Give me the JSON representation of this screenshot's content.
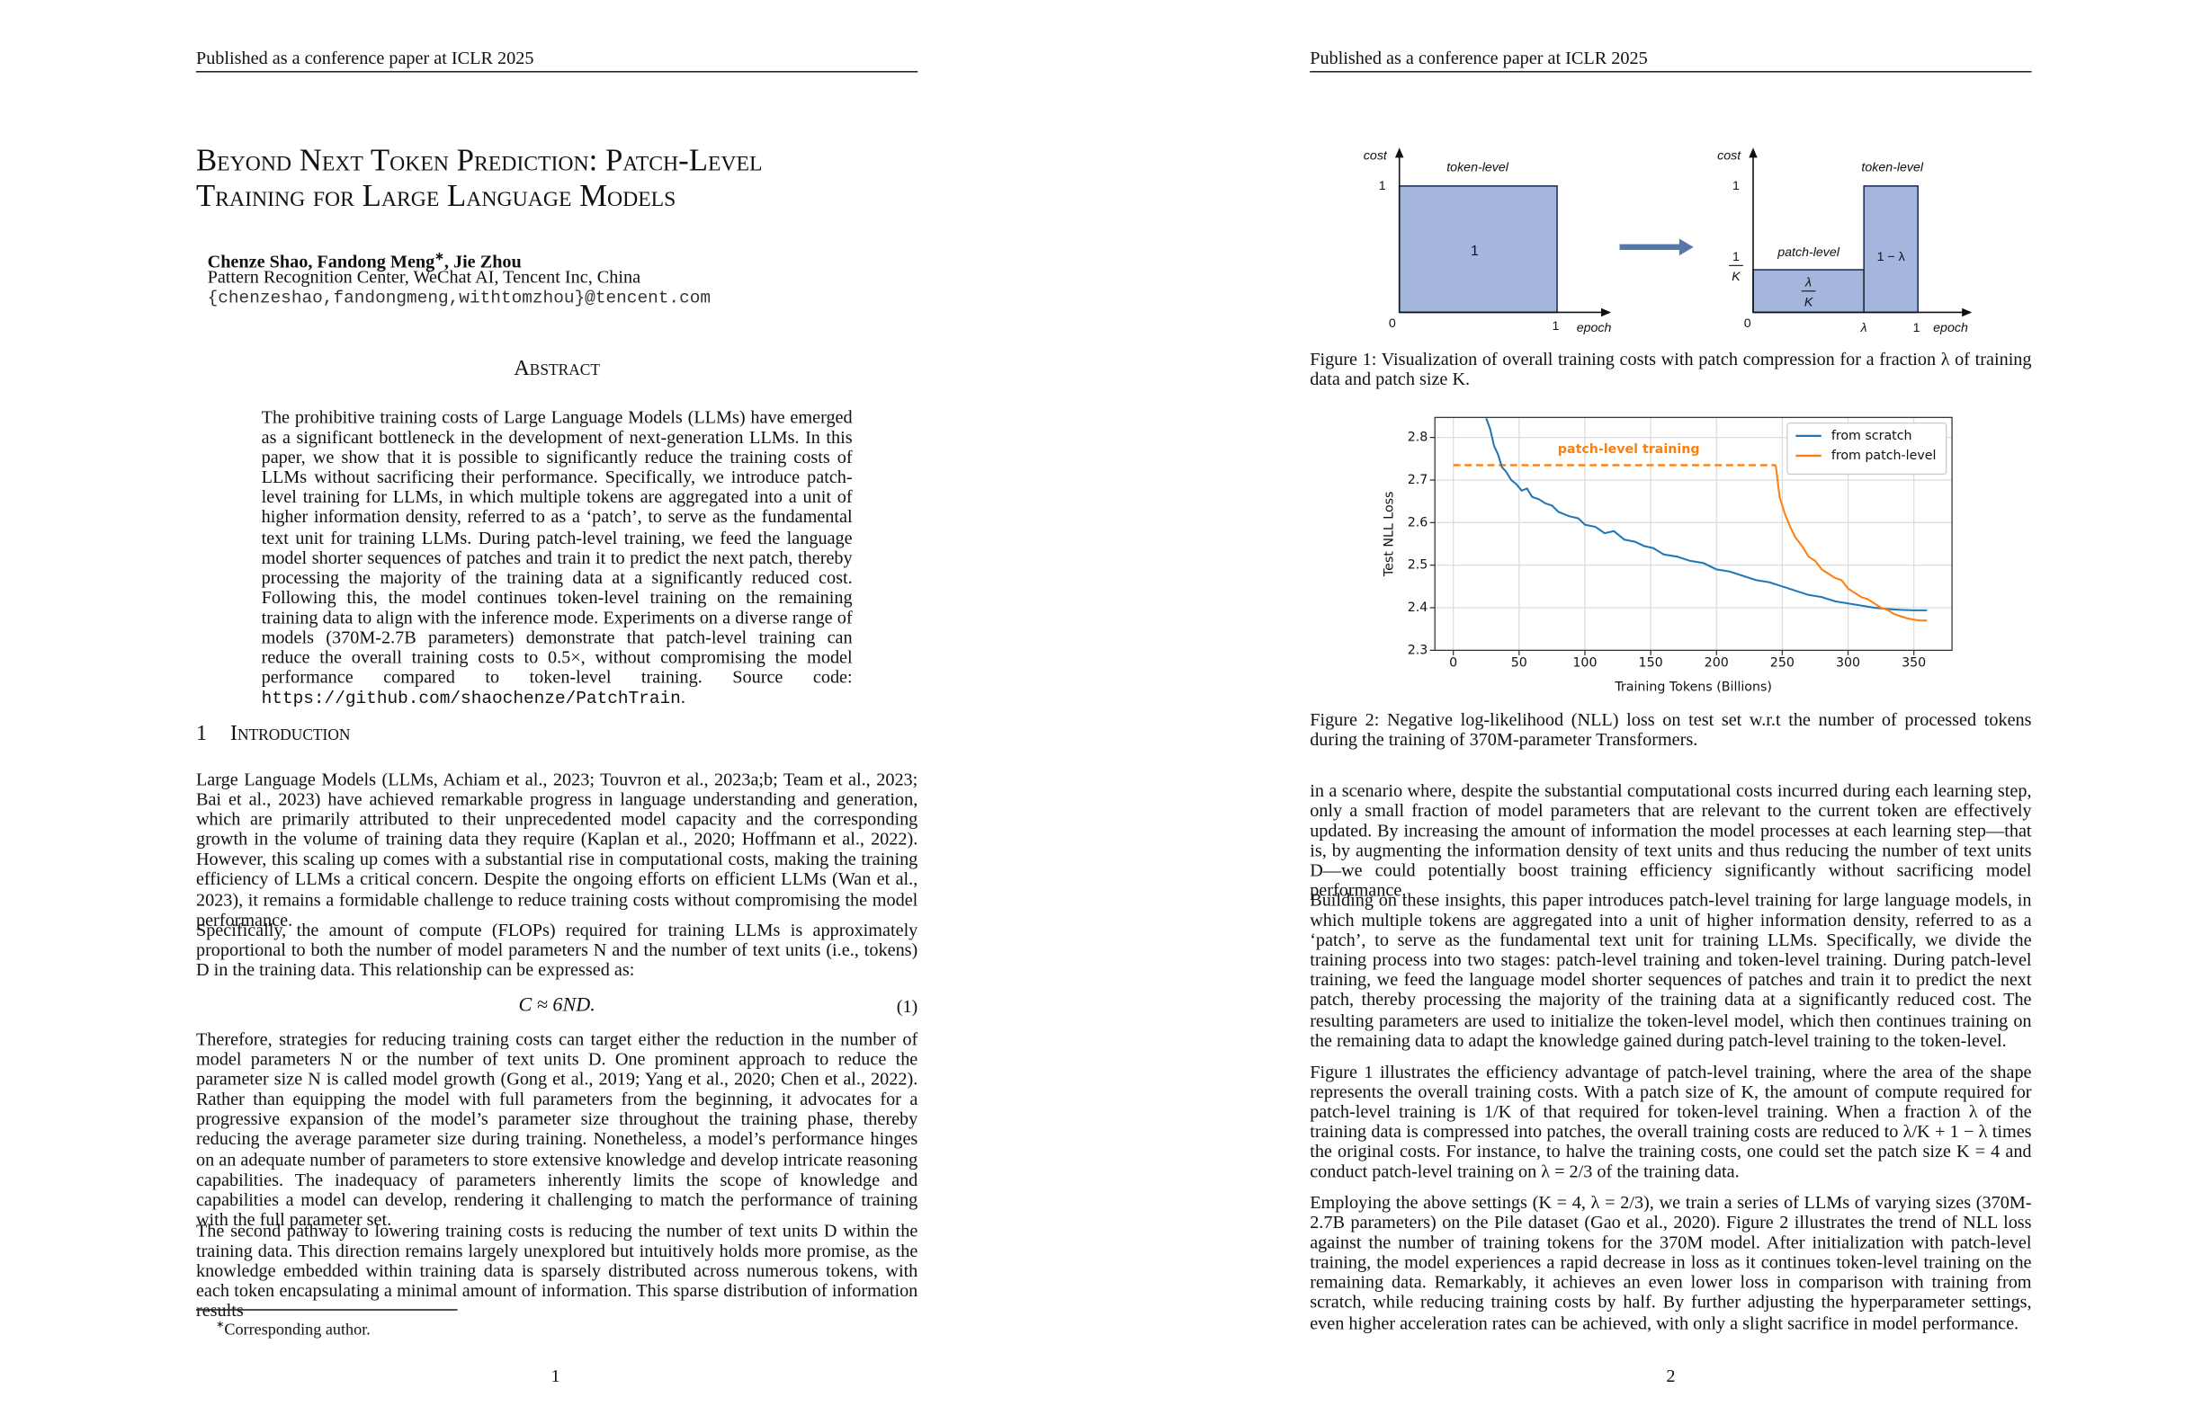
{
  "pages": [
    {
      "header": "Published as a conference paper at ICLR 2025",
      "title": [
        "Beyond Next Token Prediction: Patch-Level",
        "Training for Large Language Models"
      ],
      "authors": {
        "before": "Chenze Shao, Fandong Meng",
        "mark": "∗",
        "after": ", Jie Zhou"
      },
      "affiliation": "Pattern Recognition Center, WeChat AI, Tencent Inc, China",
      "email": "{chenzeshao,fandongmeng,withtomzhou}@tencent.com",
      "abstract": {
        "heading": "Abstract",
        "text": "The prohibitive training costs of Large Language Models (LLMs) have emerged as a significant bottleneck in the development of next-generation LLMs. In this paper, we show that it is possible to significantly reduce the training costs of LLMs without sacrificing their performance. Specifically, we introduce patch-level training for LLMs, in which multiple tokens are aggregated into a unit of higher information density, referred to as a ‘patch’, to serve as the fundamental text unit for training LLMs. During patch-level training, we feed the language model shorter sequences of patches and train it to predict the next patch, thereby processing the majority of the training data at a significantly reduced cost. Following this, the model continues token-level training on the remaining training data to align with the inference mode. Experiments on a diverse range of models (370M-2.7B parameters) demonstrate that patch-level training can reduce the overall training costs to 0.5×, without compromising the model performance compared to token-level training. Source code:",
        "url": "https://github.com/shaochenze/PatchTrain",
        "end": "."
      },
      "section": {
        "number": "1",
        "title": "Introduction"
      },
      "paragraphs": [
        "Large Language Models (LLMs, Achiam et al., 2023; Touvron et al., 2023a;b; Team et al., 2023; Bai et al., 2023) have achieved remarkable progress in language understanding and generation, which are primarily attributed to their unprecedented model capacity and the corresponding growth in the volume of training data they require (Kaplan et al., 2020; Hoffmann et al., 2022). However, this scaling up comes with a substantial rise in computational costs, making the training efficiency of LLMs a critical concern. Despite the ongoing efforts on efficient LLMs (Wan et al., 2023), it remains a formidable challenge to reduce training costs without compromising the model performance.",
        "Specifically, the amount of compute (FLOPs) required for training LLMs is approximately proportional to both the number of model parameters N and the number of text units (i.e., tokens) D in the training data. This relationship can be expressed as:",
        "Therefore, strategies for reducing training costs can target either the reduction in the number of model parameters N or the number of text units D. One prominent approach to reduce the parameter size N is called model growth (Gong et al., 2019; Yang et al., 2020; Chen et al., 2022). Rather than equipping the model with full parameters from the beginning, it advocates for a progressive expansion of the model’s parameter size throughout the training phase, thereby reducing the average parameter size during training. Nonetheless, a model’s performance hinges on an adequate number of parameters to store extensive knowledge and develop intricate reasoning capabilities. The inadequacy of parameters inherently limits the scope of knowledge and capabilities a model can develop, rendering it challenging to match the performance of training with the full parameter set.",
        "The second pathway to lowering training costs is reducing the number of text units D within the training data. This direction remains largely unexplored but intuitively holds more promise, as the knowledge embedded within training data is sparsely distributed across numerous tokens, with each token encapsulating a minimal amount of information. This sparse distribution of information results"
      ],
      "equation": {
        "text": "C ≈ 6ND.",
        "number": "(1)"
      },
      "footnote": {
        "mark": "∗",
        "text": "Corresponding author."
      },
      "page_number": "1"
    },
    {
      "header": "Published as a conference paper at ICLR 2025",
      "figure1": {
        "left": {
          "y_label": "cost",
          "x_label": "epoch",
          "region_label": "token-level",
          "area": "1",
          "y_tick": "1",
          "origin": "0",
          "x_tick": "1"
        },
        "right": {
          "y_label": "cost",
          "x_label": "epoch",
          "patch_label": "patch-level",
          "token_label": "token-level",
          "y_tick": "1",
          "y_frac_num": "1",
          "y_frac_den": "K",
          "patch_area_num": "λ",
          "patch_area_den": "K",
          "token_area": "1 − λ",
          "origin": "0",
          "x_tick_lambda": "λ",
          "x_tick": "1"
        },
        "caption": "Figure 1: Visualization of overall training costs with patch compression for a fraction λ of training data and patch size K."
      },
      "figure2": {
        "type": "line",
        "xlabel": "Training Tokens (Billions)",
        "ylabel": "Test NLL Loss",
        "xlim": [
          -14,
          379
        ],
        "ylim": [
          2.3,
          2.847
        ],
        "xticks": [
          0,
          50,
          100,
          150,
          200,
          250,
          300,
          350
        ],
        "yticks": [
          2.3,
          2.4,
          2.5,
          2.6,
          2.7,
          2.8
        ],
        "grid": true,
        "legend": "upper right",
        "series": [
          {
            "name": "from scratch",
            "color": "#1f77b4",
            "x": [
              25,
              28,
              31,
              34,
              37,
              40,
              44,
              48,
              52,
              56,
              60,
              65,
              70,
              75,
              80,
              88,
              95,
              100,
              108,
              115,
              122,
              130,
              138,
              145,
              152,
              160,
              170,
              180,
              190,
              200,
              210,
              220,
              230,
              240,
              250,
              260,
              270,
              280,
              290,
              300,
              310,
              320,
              330,
              340,
              350,
              360
            ],
            "values": [
              2.845,
              2.82,
              2.78,
              2.76,
              2.73,
              2.72,
              2.7,
              2.69,
              2.675,
              2.68,
              2.66,
              2.655,
              2.645,
              2.64,
              2.625,
              2.615,
              2.61,
              2.595,
              2.59,
              2.575,
              2.58,
              2.56,
              2.555,
              2.545,
              2.54,
              2.525,
              2.52,
              2.51,
              2.505,
              2.49,
              2.485,
              2.475,
              2.465,
              2.46,
              2.45,
              2.44,
              2.43,
              2.425,
              2.415,
              2.41,
              2.405,
              2.4,
              2.397,
              2.395,
              2.394,
              2.394
            ]
          },
          {
            "name": "from patch-level",
            "color": "#ff7f0e",
            "x": [
              245,
              248,
              252,
              256,
              260,
              265,
              270,
              275,
              280,
              285,
              290,
              295,
              300,
              305,
              310,
              315,
              320,
              325,
              330,
              335,
              340,
              345,
              350,
              355,
              360
            ],
            "values": [
              2.735,
              2.66,
              2.62,
              2.59,
              2.565,
              2.545,
              2.52,
              2.51,
              2.49,
              2.48,
              2.47,
              2.465,
              2.445,
              2.435,
              2.425,
              2.42,
              2.41,
              2.4,
              2.395,
              2.385,
              2.38,
              2.375,
              2.372,
              2.37,
              2.37
            ]
          }
        ],
        "annotation": {
          "text": "patch-level training",
          "color": "#ff7f0e",
          "x": [
            0,
            245
          ],
          "values": [
            2.735,
            2.735
          ]
        },
        "caption": "Figure 2: Negative log-likelihood (NLL) loss on test set w.r.t the number of processed tokens during the training of 370M-parameter Transformers."
      },
      "paragraphs": [
        "in a scenario where, despite the substantial computational costs incurred during each learning step, only a small fraction of model parameters that are relevant to the current token are effectively updated. By increasing the amount of information the model processes at each learning step—that is, by augmenting the information density of text units and thus reducing the number of text units D—we could potentially boost training efficiency significantly without sacrificing model performance.",
        "Building on these insights, this paper introduces patch-level training for large language models, in which multiple tokens are aggregated into a unit of higher information density, referred to as a ‘patch’, to serve as the fundamental text unit for training LLMs. Specifically, we divide the training process into two stages: patch-level training and token-level training. During patch-level training, we feed the language model shorter sequences of patches and train it to predict the next patch, thereby processing the majority of the training data at a significantly reduced cost. The resulting parameters are used to initialize the token-level model, which then continues training on the remaining data to adapt the knowledge gained during patch-level training to the token-level.",
        "Figure 1 illustrates the efficiency advantage of patch-level training, where the area of the shape represents the overall training costs. With a patch size of K, the amount of compute required for patch-level training is 1/K of that required for token-level training. When a fraction λ of the training data is compressed into patches, the overall training costs are reduced to λ/K + 1 − λ times the original costs. For instance, to halve the training costs, one could set the patch size K = 4 and conduct patch-level training on λ = 2/3 of the training data.",
        "Employing the above settings (K = 4, λ = 2/3), we train a series of LLMs of varying sizes (370M-2.7B parameters) on the Pile dataset (Gao et al., 2020). Figure 2 illustrates the trend of NLL loss against the number of training tokens for the 370M model. After initialization with patch-level training, the model experiences a rapid decrease in loss as it continues token-level training on the remaining data. Remarkably, it achieves an even lower loss in comparison with training from scratch, while reducing training costs by half. By further adjusting the hyperparameter settings, even higher acceleration rates can be achieved, with only a slight sacrifice in model performance."
      ],
      "page_number": "2"
    }
  ]
}
